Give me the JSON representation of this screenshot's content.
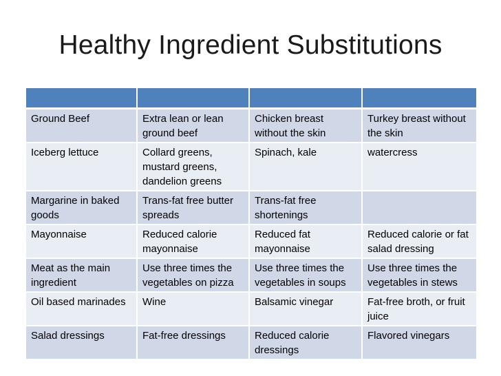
{
  "title": "Healthy Ingredient Substitutions",
  "table": {
    "header": [
      "",
      "",
      "",
      ""
    ],
    "rows": [
      [
        "Ground Beef",
        "Extra lean or lean ground beef",
        "Chicken breast without the skin",
        "Turkey breast without the skin"
      ],
      [
        "Iceberg lettuce",
        "Collard greens, mustard greens, dandelion greens",
        "Spinach, kale",
        "watercress"
      ],
      [
        "Margarine in baked goods",
        "Trans-fat free butter spreads",
        "Trans-fat free shortenings",
        ""
      ],
      [
        "Mayonnaise",
        "Reduced calorie mayonnaise",
        "Reduced fat mayonnaise",
        "Reduced calorie or fat salad dressing"
      ],
      [
        "Meat as the main ingredient",
        "Use three times the vegetables on pizza",
        "Use three times the vegetables in soups",
        "Use three times the vegetables in stews"
      ],
      [
        "Oil based marinades",
        "Wine",
        "Balsamic vinegar",
        "Fat-free broth, or fruit juice"
      ],
      [
        "Salad dressings",
        "Fat-free dressings",
        "Reduced calorie dressings",
        "Flavored vinegars"
      ]
    ]
  },
  "colors": {
    "header": "#4f81bd",
    "row_odd": "#d0d8e8",
    "row_even": "#e9edf4"
  }
}
